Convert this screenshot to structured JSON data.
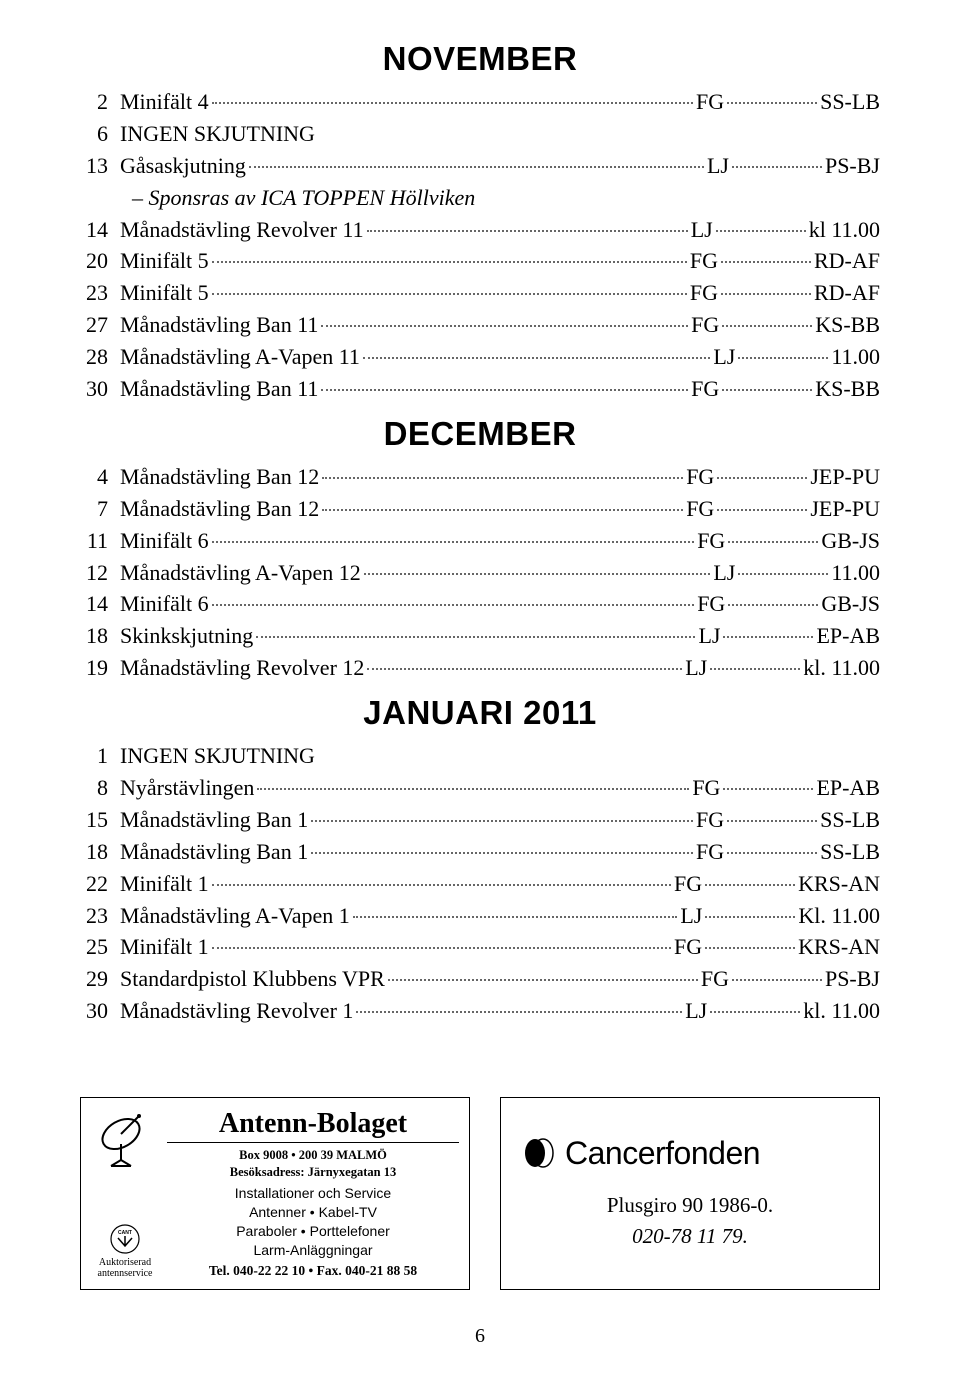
{
  "sections": [
    {
      "heading": "NOVEMBER",
      "rows": [
        {
          "day": "2",
          "event": "Minifält 4",
          "mid": "FG",
          "tail": "SS-LB"
        },
        {
          "day": "6",
          "event": "INGEN SKJUTNING",
          "plain": true
        },
        {
          "day": "13",
          "event": "Gåsaskjutning",
          "mid": "LJ",
          "tail": "PS-BJ"
        },
        {
          "note": "– Sponsras av ICA TOPPEN Höllviken"
        },
        {
          "day": "14",
          "event": "Månadstävling Revolver 11",
          "mid": "LJ",
          "tail": "kl 11.00"
        },
        {
          "day": "20",
          "event": "Minifält 5",
          "mid": "FG",
          "tail": "RD-AF"
        },
        {
          "day": "23",
          "event": "Minifält 5",
          "mid": "FG",
          "tail": "RD-AF"
        },
        {
          "day": "27",
          "event": "Månadstävling Ban 11",
          "mid": "FG",
          "tail": "KS-BB"
        },
        {
          "day": "28",
          "event": "Månadstävling A-Vapen 11",
          "mid": "LJ",
          "tail": "11.00"
        },
        {
          "day": "30",
          "event": "Månadstävling Ban 11",
          "mid": "FG",
          "tail": "KS-BB"
        }
      ]
    },
    {
      "heading": "DECEMBER",
      "rows": [
        {
          "day": "4",
          "event": "Månadstävling Ban 12",
          "mid": "FG",
          "tail": "JEP-PU"
        },
        {
          "day": "7",
          "event": "Månadstävling Ban 12",
          "mid": "FG",
          "tail": "JEP-PU"
        },
        {
          "day": "11",
          "event": "Minifält 6",
          "mid": "FG",
          "tail": "GB-JS"
        },
        {
          "day": "12",
          "event": "Månadstävling A-Vapen 12",
          "mid": "LJ",
          "tail": "11.00"
        },
        {
          "day": "14",
          "event": "Minifält 6",
          "mid": "FG",
          "tail": "GB-JS"
        },
        {
          "day": "18",
          "event": "Skinkskjutning",
          "mid": "LJ",
          "tail": "EP-AB"
        },
        {
          "day": "19",
          "event": "Månadstävling Revolver 12",
          "mid": "LJ",
          "tail": "kl. 11.00"
        }
      ]
    },
    {
      "heading": "JANUARI 2011",
      "rows": [
        {
          "day": "1",
          "event": "INGEN SKJUTNING",
          "plain": true
        },
        {
          "day": "8",
          "event": "Nyårstävlingen",
          "mid": "FG",
          "tail": "EP-AB"
        },
        {
          "day": "15",
          "event": "Månadstävling Ban 1",
          "mid": "FG",
          "tail": "SS-LB"
        },
        {
          "day": "18",
          "event": "Månadstävling Ban 1",
          "mid": "FG",
          "tail": "SS-LB"
        },
        {
          "day": "22",
          "event": "Minifält 1",
          "mid": "FG",
          "tail": "KRS-AN"
        },
        {
          "day": "23",
          "event": "Månadstävling A-Vapen 1",
          "mid": "LJ",
          "tail": "Kl. 11.00"
        },
        {
          "day": "25",
          "event": "Minifält 1",
          "mid": "FG",
          "tail": "KRS-AN"
        },
        {
          "day": "29",
          "event": "Standardpistol Klubbens VPR",
          "mid": "FG",
          "tail": "PS-BJ"
        },
        {
          "day": "30",
          "event": "Månadstävling Revolver 1",
          "mid": "LJ",
          "tail": "kl. 11.00"
        }
      ]
    }
  ],
  "ad_left": {
    "title": "Antenn-Bolaget",
    "addr1": "Box 9008 • 200 39 MALMÖ",
    "addr2": "Besöksadress: Järnyxegatan 13",
    "srv1": "Installationer och Service",
    "srv2": "Antenner • Kabel-TV",
    "srv3": "Paraboler • Porttelefoner",
    "srv4": "Larm-Anläggningar",
    "tel": "Tel. 040-22 22 10 • Fax. 040-21 88 58",
    "auth1": "Auktoriserad",
    "auth2": "antennservice",
    "cant": "CANT"
  },
  "ad_right": {
    "brand": "Cancerfonden",
    "line1": "Plusgiro 90 1986-0.",
    "line2": "020-78 11 79."
  },
  "page": "6"
}
